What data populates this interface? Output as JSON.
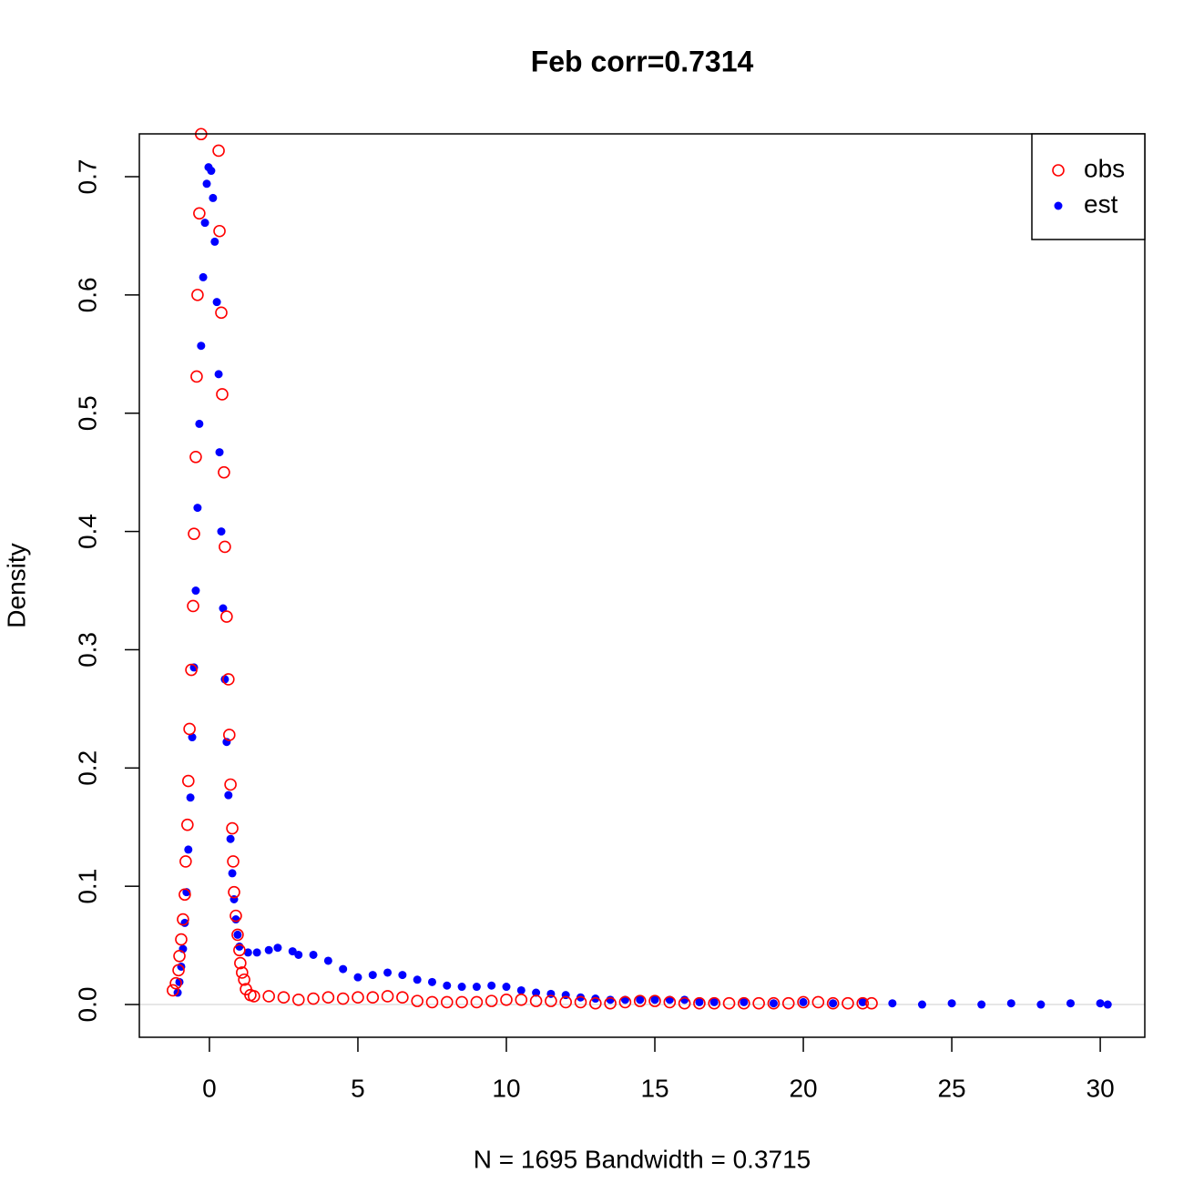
{
  "chart_data": {
    "type": "scatter",
    "title": "Feb corr=0.7314",
    "x_label": "N = 1695   Bandwidth = 0.3715",
    "y_label": "Density",
    "xlim": [
      -2.36,
      31.5
    ],
    "ylim": [
      -0.0277,
      0.7362
    ],
    "xticks": [
      0,
      5,
      10,
      15,
      20,
      25,
      30
    ],
    "yticks": [
      {
        "value": 0,
        "label": "0.0"
      },
      0.1,
      0.2,
      0.3,
      0.4,
      0.5,
      0.6,
      0.7
    ],
    "reference_line": 0,
    "legend": "top-right",
    "series": [
      {
        "name": "obs",
        "color": "#ff0000",
        "marker": "open",
        "x": [
          -1.23,
          -1.13,
          -1.04,
          -1.01,
          -0.95,
          -0.89,
          -0.83,
          -0.8,
          -0.74,
          -0.71,
          -0.67,
          -0.61,
          -0.55,
          -0.52,
          -0.46,
          -0.43,
          -0.4,
          -0.34,
          -0.28,
          0.31,
          0.34,
          0.4,
          0.43,
          0.49,
          0.52,
          0.58,
          0.64,
          0.67,
          0.71,
          0.77,
          0.8,
          0.83,
          0.89,
          0.95,
          1.01,
          1.04,
          1.1,
          1.17,
          1.23,
          1.38,
          1.5,
          2,
          2.5,
          3,
          3.5,
          4,
          4.5,
          5,
          5.5,
          6,
          6.5,
          7,
          7.5,
          8,
          8.5,
          9,
          9.5,
          10,
          10.5,
          11,
          11.5,
          12,
          12.5,
          13,
          13.5,
          14,
          14.5,
          15,
          15.5,
          16,
          16.5,
          17,
          17.5,
          18,
          18.5,
          19,
          19.5,
          20,
          20.5,
          21,
          21.5,
          22,
          22.3
        ],
        "values": [
          0.012,
          0.018,
          0.029,
          0.041,
          0.055,
          0.072,
          0.093,
          0.121,
          0.152,
          0.189,
          0.233,
          0.283,
          0.337,
          0.398,
          0.463,
          0.531,
          0.6,
          0.669,
          0.736,
          0.722,
          0.654,
          0.585,
          0.516,
          0.45,
          0.387,
          0.328,
          0.275,
          0.228,
          0.186,
          0.149,
          0.121,
          0.095,
          0.075,
          0.059,
          0.046,
          0.035,
          0.027,
          0.021,
          0.013,
          0.008,
          0.007,
          0.007,
          0.006,
          0.004,
          0.005,
          0.006,
          0.005,
          0.006,
          0.006,
          0.007,
          0.006,
          0.003,
          0.002,
          0.002,
          0.002,
          0.002,
          0.003,
          0.004,
          0.004,
          0.003,
          0.003,
          0.002,
          0.002,
          0.001,
          0.001,
          0.002,
          0.003,
          0.003,
          0.002,
          0.001,
          0.001,
          0.001,
          0.001,
          0.001,
          0.001,
          0.001,
          0.001,
          0.002,
          0.002,
          0.001,
          0.001,
          0.001,
          0.001
        ]
      },
      {
        "name": "est",
        "color": "#0000ff",
        "marker": "filled",
        "x": [
          -1.07,
          -1.01,
          -0.95,
          -0.89,
          -0.83,
          -0.77,
          -0.71,
          -0.64,
          -0.58,
          -0.52,
          -0.46,
          -0.4,
          -0.34,
          -0.28,
          -0.21,
          -0.15,
          -0.09,
          -0.03,
          0.06,
          0.12,
          0.18,
          0.25,
          0.31,
          0.34,
          0.4,
          0.46,
          0.52,
          0.58,
          0.64,
          0.71,
          0.77,
          0.83,
          0.89,
          0.95,
          1.01,
          1.3,
          1.6,
          2,
          2.3,
          2.8,
          3,
          3.5,
          4,
          4.5,
          5,
          5.5,
          6,
          6.5,
          7,
          7.5,
          8,
          8.5,
          9,
          9.5,
          10,
          10.5,
          11,
          11.5,
          12,
          12.5,
          13,
          13.5,
          14,
          14.5,
          15,
          15.5,
          16,
          16.5,
          17,
          18,
          19,
          20,
          21,
          22,
          23,
          24,
          25,
          26,
          27,
          28,
          29,
          30,
          30.25
        ],
        "values": [
          0.01,
          0.019,
          0.032,
          0.047,
          0.069,
          0.095,
          0.131,
          0.175,
          0.226,
          0.285,
          0.35,
          0.42,
          0.491,
          0.557,
          0.615,
          0.661,
          0.694,
          0.708,
          0.705,
          0.682,
          0.645,
          0.594,
          0.533,
          0.467,
          0.4,
          0.335,
          0.275,
          0.222,
          0.177,
          0.14,
          0.111,
          0.089,
          0.072,
          0.059,
          0.049,
          0.044,
          0.044,
          0.046,
          0.048,
          0.045,
          0.042,
          0.042,
          0.037,
          0.03,
          0.023,
          0.025,
          0.027,
          0.025,
          0.021,
          0.019,
          0.016,
          0.015,
          0.015,
          0.016,
          0.015,
          0.012,
          0.01,
          0.009,
          0.008,
          0.006,
          0.005,
          0.004,
          0.004,
          0.004,
          0.004,
          0.004,
          0.004,
          0.002,
          0.002,
          0.002,
          0.001,
          0.002,
          0.001,
          0.002,
          0.001,
          0,
          0.001,
          0,
          0.001,
          0,
          0.001,
          0.001,
          0
        ]
      }
    ]
  }
}
